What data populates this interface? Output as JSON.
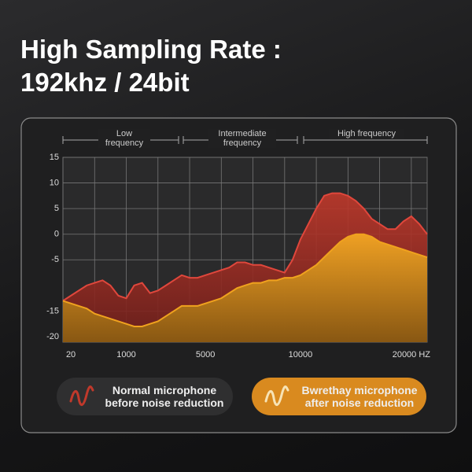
{
  "title": "High Sampling Rate :",
  "subtitle": "192khz / 24bit",
  "chart_data": {
    "type": "area",
    "frequency_bands": [
      "Low frequency",
      "Intermediate frequency",
      "High frequency"
    ],
    "categories": [
      null,
      "20",
      null,
      null,
      null,
      null,
      null,
      null,
      "1000",
      null,
      null,
      null,
      null,
      null,
      null,
      null,
      null,
      null,
      "5000",
      null,
      null,
      null,
      null,
      null,
      null,
      null,
      null,
      null,
      null,
      null,
      "10000",
      null,
      null,
      null,
      null,
      null,
      null,
      null,
      null,
      null,
      null,
      null,
      null,
      null,
      "20000 HZ",
      null,
      null
    ],
    "series": [
      {
        "name": "Normal microphone before noise reduction",
        "color": "#c0392b",
        "values": [
          -13,
          -12,
          -11,
          -10,
          -9.5,
          -9,
          -10,
          -12,
          -12.5,
          -10,
          -9.5,
          -11.5,
          -11,
          -10,
          -9,
          -8,
          -8.5,
          -8.5,
          -8,
          -7.5,
          -7,
          -6.5,
          -5.5,
          -5.5,
          -6,
          -6,
          -6.5,
          -7,
          -7.5,
          -5,
          -1,
          2,
          5,
          7.5,
          8,
          8,
          7.5,
          6.5,
          5,
          3,
          2,
          1,
          1,
          2.5,
          3.5,
          2,
          0
        ]
      },
      {
        "name": "Bwrethay microphone after noise reduction",
        "color": "#f0a21e",
        "values": [
          -13,
          -13.5,
          -14,
          -14.5,
          -15.5,
          -16,
          -16.5,
          -17,
          -17.5,
          -18,
          -18,
          -17.5,
          -17,
          -16,
          -15,
          -14,
          -14,
          -14,
          -13.5,
          -13,
          -12.5,
          -11.5,
          -10.5,
          -10,
          -9.5,
          -9.5,
          -9,
          -9,
          -8.5,
          -8.5,
          -8,
          -7,
          -6,
          -4.5,
          -3,
          -1.5,
          -0.5,
          0,
          0,
          -0.5,
          -1.5,
          -2,
          -2.5,
          -3,
          -3.5,
          -4,
          -4.5
        ]
      }
    ],
    "ylim": [
      -20,
      15
    ],
    "yticks": [
      15,
      10,
      5,
      0,
      -5,
      -15,
      -20
    ],
    "grid": true
  }
}
